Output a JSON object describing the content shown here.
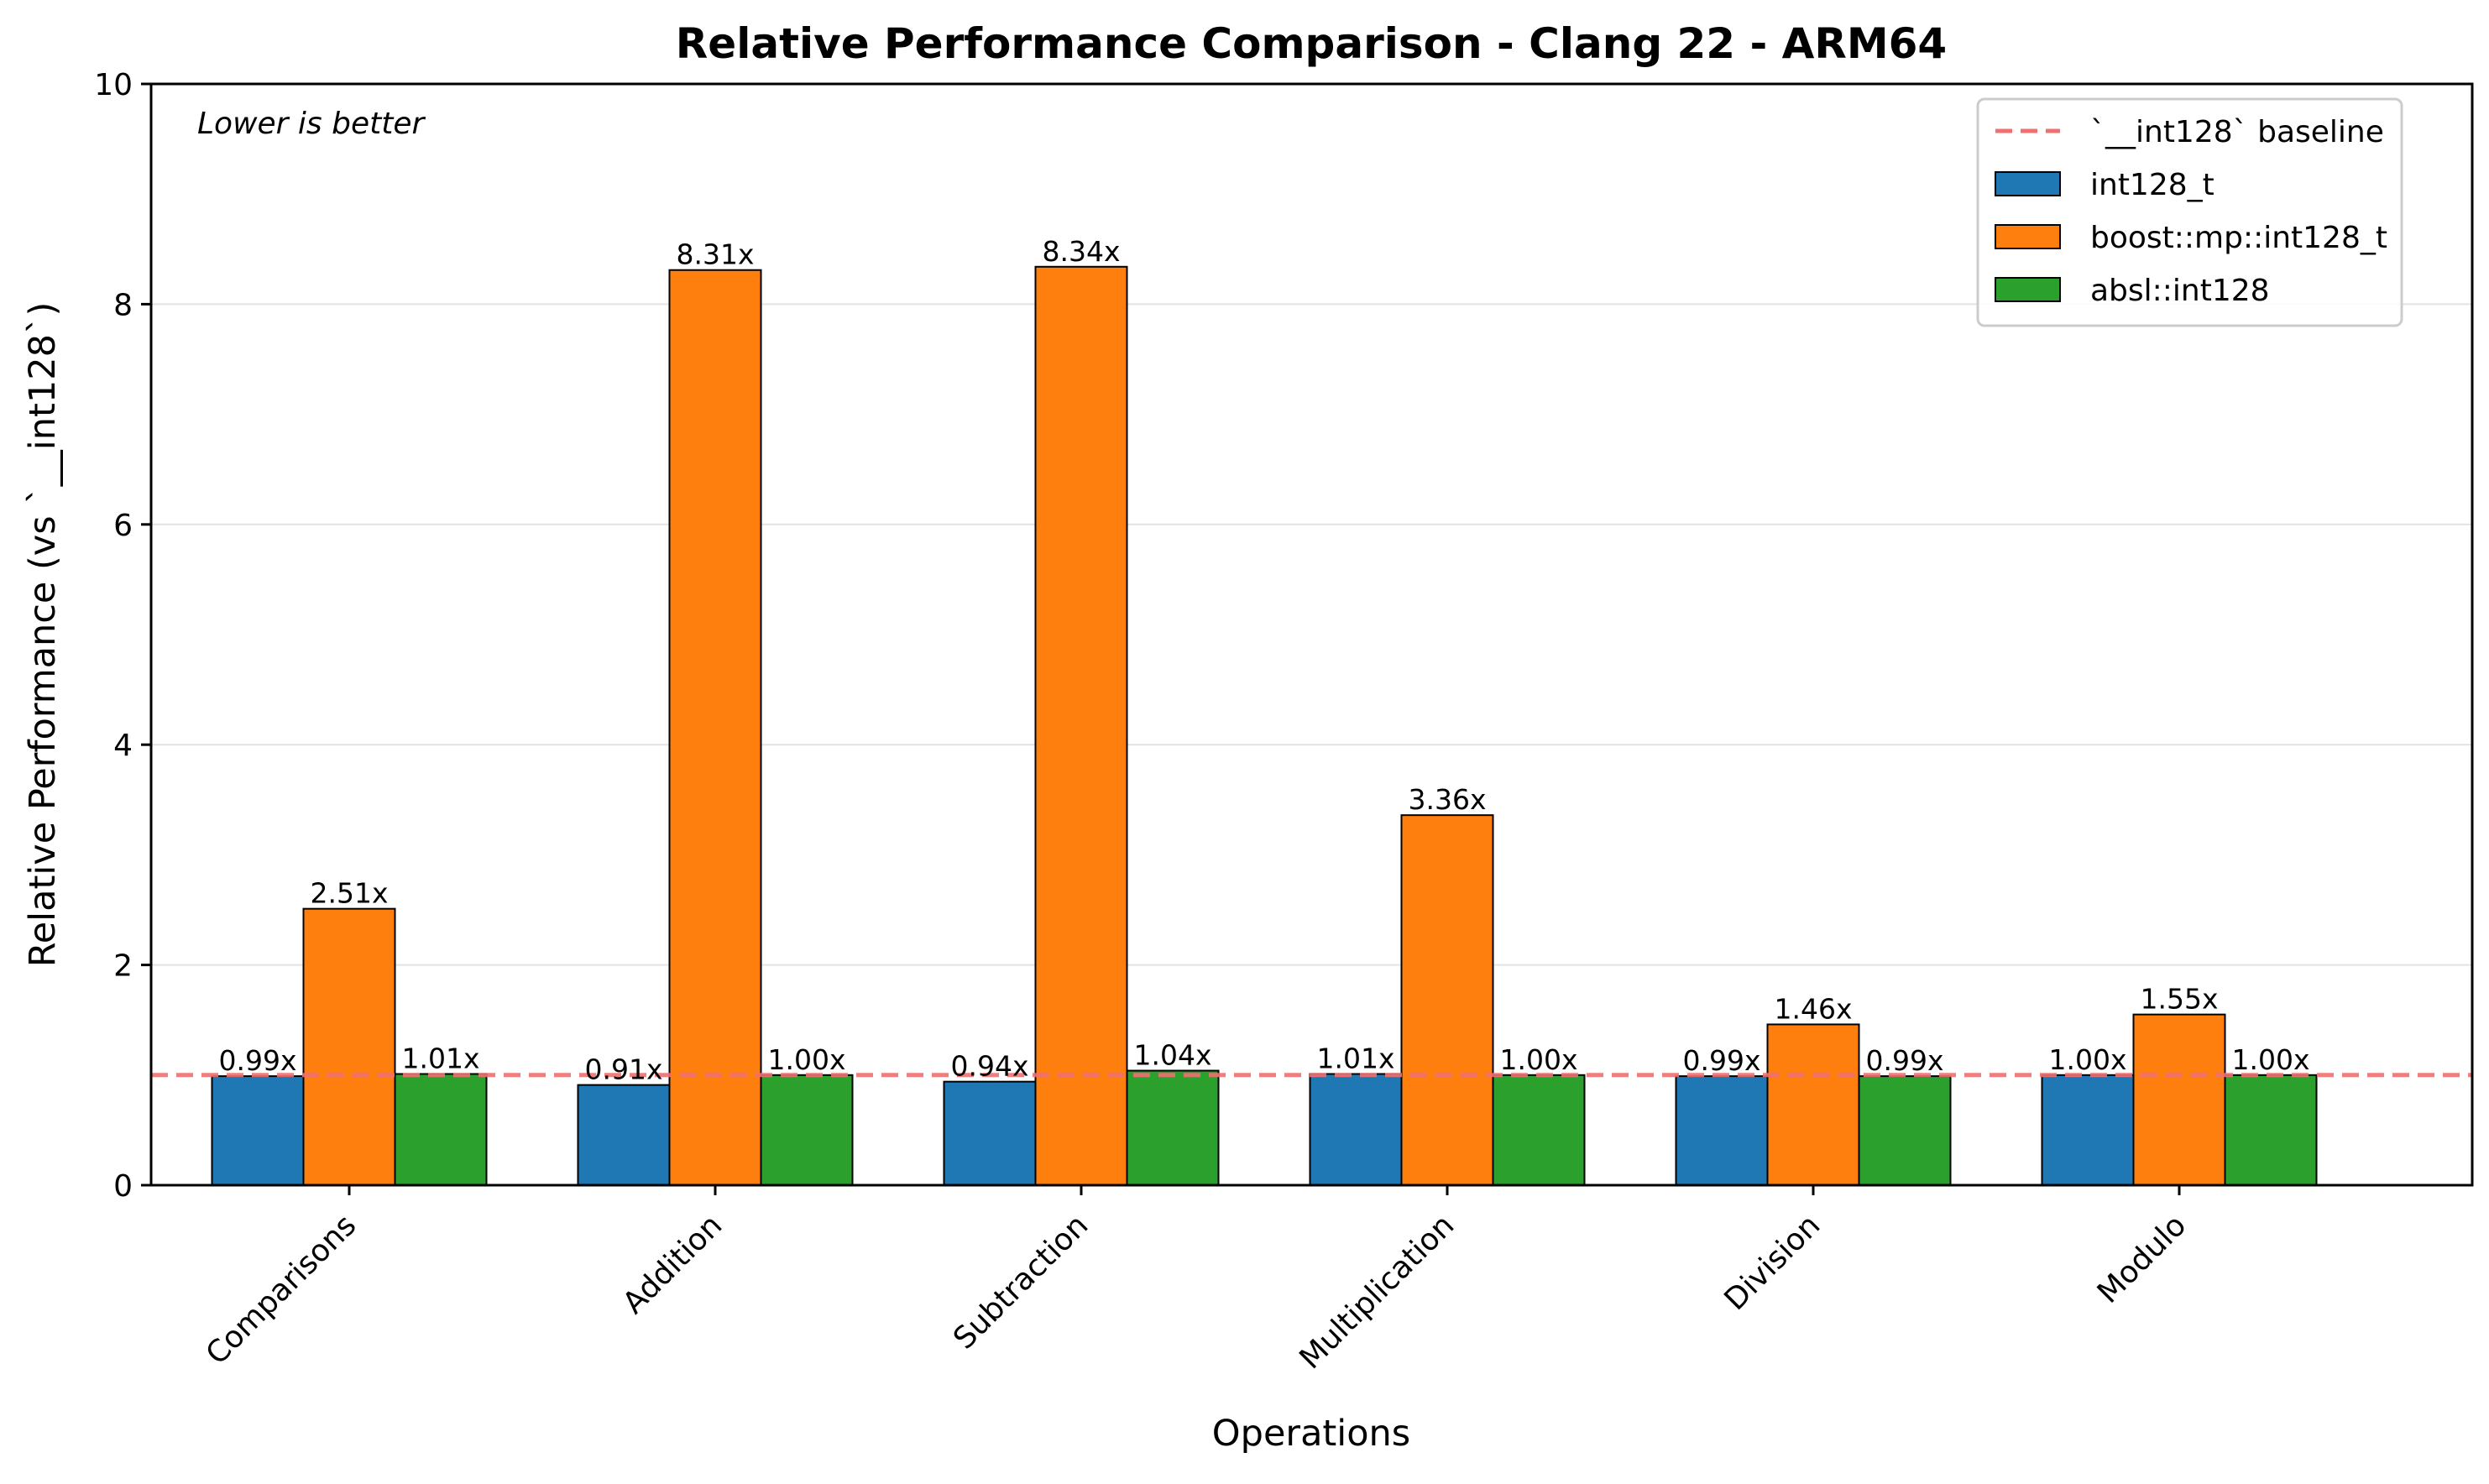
{
  "chart_data": {
    "type": "bar",
    "title": "Relative Performance Comparison - Clang 22 - ARM64",
    "xlabel": "Operations",
    "ylabel": "Relative Performance (vs `__int128`)",
    "annotation": "Lower is better",
    "ylim": [
      0,
      10
    ],
    "yticks": [
      0,
      2,
      4,
      6,
      8,
      10
    ],
    "grid": "horizontal",
    "legend_position": "top-right",
    "categories": [
      "Comparisons",
      "Addition",
      "Subtraction",
      "Multiplication",
      "Division",
      "Modulo"
    ],
    "baseline": {
      "name": "`__int128` baseline",
      "value": 1.0,
      "color": "#f07070",
      "style": "dashed"
    },
    "series": [
      {
        "name": "int128_t",
        "color": "#1f77b4",
        "values": [
          0.99,
          0.91,
          0.94,
          1.01,
          0.99,
          1.0
        ],
        "labels": [
          "0.99x",
          "0.91x",
          "0.94x",
          "1.01x",
          "0.99x",
          "1.00x"
        ]
      },
      {
        "name": "boost::mp::int128_t",
        "color": "#ff7f0e",
        "values": [
          2.51,
          8.31,
          8.34,
          3.36,
          1.46,
          1.55
        ],
        "labels": [
          "2.51x",
          "8.31x",
          "8.34x",
          "3.36x",
          "1.46x",
          "1.55x"
        ]
      },
      {
        "name": "absl::int128",
        "color": "#2ca02c",
        "values": [
          1.01,
          1.0,
          1.04,
          1.0,
          0.99,
          1.0
        ],
        "labels": [
          "1.01x",
          "1.00x",
          "1.04x",
          "1.00x",
          "0.99x",
          "1.00x"
        ]
      }
    ]
  }
}
